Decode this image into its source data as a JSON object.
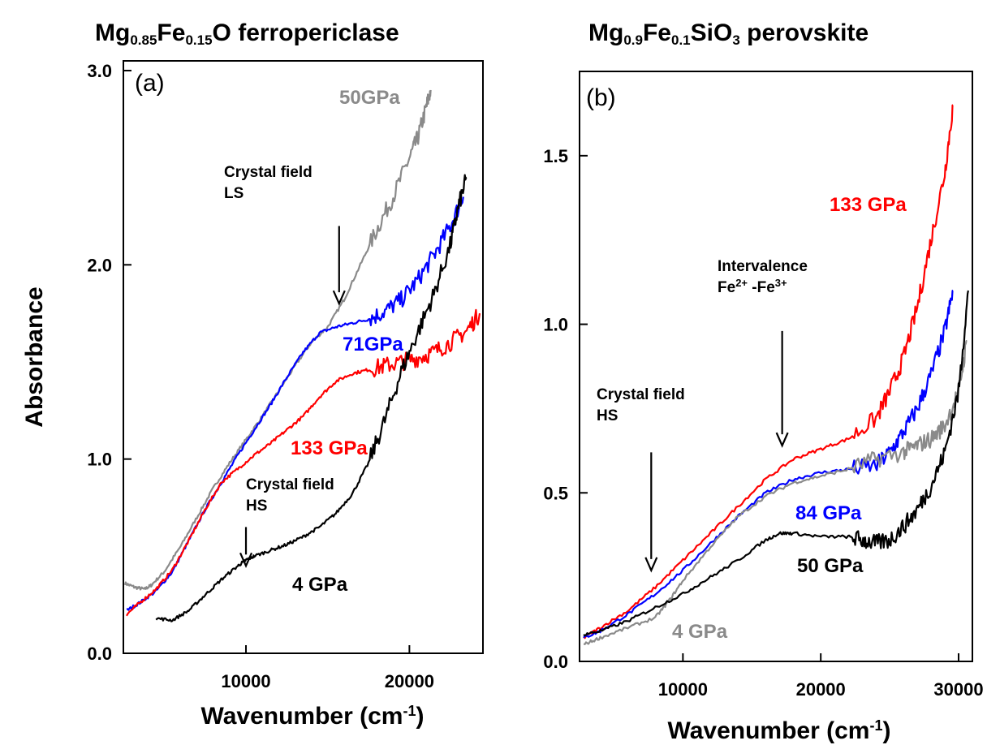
{
  "chart_data": [
    {
      "type": "line",
      "panel_label": "(a)",
      "title_parts": [
        {
          "t": "Mg",
          "sub": false
        },
        {
          "t": "0.85",
          "sub": true
        },
        {
          "t": "Fe",
          "sub": false
        },
        {
          "t": "0.15",
          "sub": true
        },
        {
          "t": "O ferropericlase",
          "sub": false
        }
      ],
      "xlabel_main": "Wavenumber (cm",
      "xlabel_sup": "-1",
      "xlabel_close": ")",
      "ylabel": "Absorbance",
      "xlim": [
        2500,
        24500
      ],
      "ylim": [
        0,
        3.05
      ],
      "xticks": [
        10000,
        20000
      ],
      "xtick_labels": [
        "10000",
        "20000"
      ],
      "yticks": [
        0,
        1,
        2,
        3
      ],
      "ytick_labels": [
        "0.0",
        "1.0",
        "2.0",
        "3.0"
      ],
      "grid": false,
      "series": [
        {
          "name": "50GPa",
          "color": "#8a8a8a",
          "x": [
            2600,
            3200,
            3800,
            4200,
            5000,
            6000,
            7000,
            8000,
            9000,
            10000,
            11000,
            12000,
            13000,
            14000,
            15000,
            16000,
            17000,
            18000,
            19000,
            20000,
            20500,
            21000,
            21300
          ],
          "y": [
            0.36,
            0.34,
            0.33,
            0.35,
            0.42,
            0.55,
            0.7,
            0.85,
            0.98,
            1.1,
            1.22,
            1.35,
            1.48,
            1.6,
            1.68,
            1.82,
            2.0,
            2.18,
            2.35,
            2.55,
            2.65,
            2.8,
            2.9
          ]
        },
        {
          "name": "71GPa",
          "color": "#0000ff",
          "x": [
            2700,
            3500,
            4500,
            5500,
            6500,
            7500,
            8500,
            9500,
            10500,
            11500,
            12500,
            13500,
            14500,
            15500,
            16500,
            17500,
            18500,
            19500,
            20500,
            21500,
            22500,
            23300
          ],
          "y": [
            0.22,
            0.26,
            0.32,
            0.42,
            0.58,
            0.74,
            0.88,
            1.02,
            1.15,
            1.28,
            1.42,
            1.55,
            1.65,
            1.68,
            1.7,
            1.72,
            1.76,
            1.82,
            1.92,
            2.05,
            2.2,
            2.35
          ]
        },
        {
          "name": "133 GPa",
          "color": "#ff0000",
          "x": [
            2700,
            3500,
            4500,
            5500,
            6500,
            7500,
            8500,
            9500,
            10500,
            11500,
            12500,
            13500,
            14500,
            15500,
            16500,
            17500,
            18500,
            19500,
            20500,
            21500,
            22500,
            23500,
            24300
          ],
          "y": [
            0.2,
            0.26,
            0.33,
            0.43,
            0.58,
            0.74,
            0.88,
            0.95,
            1.02,
            1.08,
            1.15,
            1.22,
            1.32,
            1.4,
            1.44,
            1.46,
            1.48,
            1.5,
            1.52,
            1.55,
            1.6,
            1.66,
            1.75
          ]
        },
        {
          "name": "4 GPa",
          "color": "#000000",
          "x": [
            4500,
            5500,
            6500,
            7500,
            8500,
            9500,
            10000,
            10500,
            11500,
            12500,
            13500,
            14500,
            15500,
            16500,
            17500,
            18500,
            19500,
            20500,
            21500,
            22500,
            23000,
            23500
          ],
          "y": [
            0.18,
            0.17,
            0.22,
            0.3,
            0.38,
            0.45,
            0.48,
            0.5,
            0.53,
            0.56,
            0.6,
            0.65,
            0.72,
            0.82,
            0.98,
            1.2,
            1.45,
            1.65,
            1.85,
            2.1,
            2.3,
            2.45
          ]
        }
      ],
      "annotations": [
        {
          "lines": [
            "Crystal field",
            "LS"
          ],
          "arrow_x": 15700,
          "arrow_from": 2.2,
          "arrow_to": 1.8
        },
        {
          "lines": [
            "Crystal field",
            "HS"
          ],
          "arrow_x": 10000,
          "arrow_from": 0.65,
          "arrow_to": 0.45
        }
      ]
    },
    {
      "type": "line",
      "panel_label": "(b)",
      "title_parts": [
        {
          "t": "Mg",
          "sub": false
        },
        {
          "t": "0.9",
          "sub": true
        },
        {
          "t": "Fe",
          "sub": false
        },
        {
          "t": "0.1",
          "sub": true
        },
        {
          "t": "SiO",
          "sub": false
        },
        {
          "t": "3",
          "sub": true
        },
        {
          "t": " perovskite",
          "sub": false
        }
      ],
      "xlabel_main": "Wavenumber (cm",
      "xlabel_sup": "-1",
      "xlabel_close": ")",
      "ylabel": "",
      "xlim": [
        2500,
        31000
      ],
      "ylim": [
        0,
        1.75
      ],
      "xticks": [
        10000,
        20000,
        30000
      ],
      "xtick_labels": [
        "10000",
        "20000",
        "30000"
      ],
      "yticks": [
        0,
        0.5,
        1.0,
        1.5
      ],
      "ytick_labels": [
        "0.0",
        "0.5",
        "1.0",
        "1.5"
      ],
      "grid": false,
      "series": [
        {
          "name": "133 GPa",
          "color": "#ff0000",
          "x": [
            2800,
            4000,
            6000,
            8000,
            10000,
            12000,
            14000,
            16000,
            18000,
            20000,
            22000,
            24000,
            25000,
            26000,
            27000,
            28000,
            29000,
            29600
          ],
          "y": [
            0.07,
            0.1,
            0.15,
            0.22,
            0.3,
            0.38,
            0.46,
            0.54,
            0.6,
            0.63,
            0.66,
            0.72,
            0.8,
            0.9,
            1.05,
            1.25,
            1.45,
            1.65
          ]
        },
        {
          "name": "84 GPa",
          "color": "#0000ff",
          "x": [
            2800,
            4000,
            6000,
            8000,
            10000,
            12000,
            14000,
            16000,
            18000,
            20000,
            22000,
            24000,
            25000,
            26000,
            27000,
            28000,
            29000,
            29600
          ],
          "y": [
            0.07,
            0.09,
            0.14,
            0.2,
            0.27,
            0.35,
            0.43,
            0.5,
            0.54,
            0.56,
            0.57,
            0.58,
            0.62,
            0.68,
            0.75,
            0.85,
            0.98,
            1.1
          ]
        },
        {
          "name": "4 GPa",
          "color": "#8a8a8a",
          "x": [
            2800,
            4000,
            6000,
            8000,
            9000,
            10000,
            12000,
            14000,
            16000,
            18000,
            20000,
            22000,
            24000,
            26000,
            27000,
            28000,
            29000,
            30000,
            30600
          ],
          "y": [
            0.05,
            0.07,
            0.1,
            0.13,
            0.18,
            0.24,
            0.34,
            0.43,
            0.49,
            0.53,
            0.55,
            0.57,
            0.6,
            0.62,
            0.64,
            0.66,
            0.7,
            0.8,
            0.95
          ]
        },
        {
          "name": "50 GPa",
          "color": "#000000",
          "x": [
            2800,
            4000,
            6000,
            8000,
            10000,
            12000,
            14000,
            16000,
            17000,
            18000,
            20000,
            22000,
            23000,
            24000,
            25000,
            26000,
            27000,
            28000,
            29000,
            30000,
            30700
          ],
          "y": [
            0.08,
            0.09,
            0.12,
            0.16,
            0.2,
            0.25,
            0.3,
            0.36,
            0.38,
            0.38,
            0.37,
            0.37,
            0.36,
            0.35,
            0.36,
            0.4,
            0.45,
            0.52,
            0.62,
            0.8,
            1.1
          ]
        }
      ],
      "annotations": [
        {
          "lines": [
            "Crystal field",
            "HS"
          ],
          "arrow_x": 7700,
          "arrow_from": 0.62,
          "arrow_to": 0.27
        },
        {
          "lines": [
            "Intervalence"
          ],
          "rich": [
            {
              "t": "Fe",
              "sup": false
            },
            {
              "t": "2+",
              "sup": true
            },
            {
              "t": " -Fe",
              "sup": false
            },
            {
              "t": "3+",
              "sup": true
            }
          ],
          "arrow_x": 17200,
          "arrow_from": 0.98,
          "arrow_to": 0.64
        }
      ]
    }
  ]
}
